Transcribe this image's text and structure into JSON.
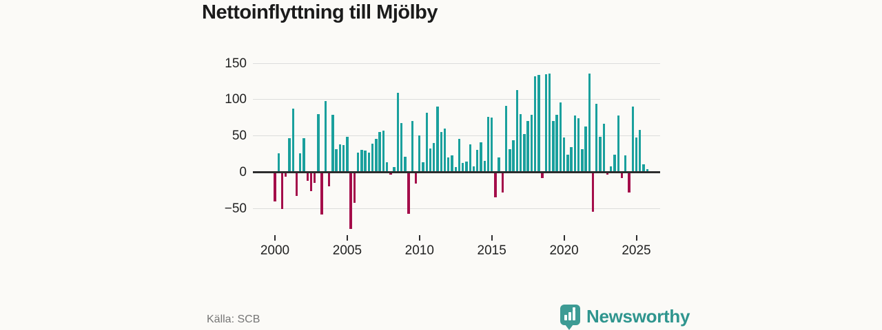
{
  "title": "Nettoinflyttning till Mjölby",
  "source": "Källa: SCB",
  "brand": {
    "name": "Newsworthy",
    "icon": "bar-chart-pin-icon",
    "badge_color": "#3d9b94",
    "text_color": "#2f958e"
  },
  "colors": {
    "positive_bar": "#1aa09d",
    "negative_bar": "#a40d4a",
    "gridline": "#dcdcdc",
    "zero_axis": "#2d2d2d",
    "tick_text": "#222222",
    "muted_text": "#757575",
    "background": "#fbfaf7"
  },
  "chart_data": {
    "type": "bar",
    "title": "Nettoinflyttning till Mjölby",
    "x_frequency": "quarterly",
    "x_start": "2000 Q1",
    "x_end": "2025 Q4",
    "x_tick_labels": [
      "2000",
      "2005",
      "2010",
      "2015",
      "2020",
      "2025"
    ],
    "y_ticks": [
      150,
      100,
      50,
      0,
      -50
    ],
    "y_tick_labels": [
      "150",
      "100",
      "50",
      "0",
      "−50"
    ],
    "ylim": [
      -85,
      155
    ],
    "grid": true,
    "legend": false,
    "values": [
      -40,
      26,
      -51,
      -6,
      47,
      88,
      -33,
      26,
      47,
      -12,
      -26,
      -15,
      80,
      -58,
      98,
      -19,
      79,
      32,
      38,
      37,
      49,
      -78,
      -42,
      27,
      31,
      30,
      27,
      39,
      46,
      55,
      57,
      14,
      -3,
      7,
      109,
      68,
      21,
      -57,
      71,
      -16,
      51,
      14,
      82,
      33,
      40,
      90,
      55,
      60,
      20,
      23,
      7,
      46,
      13,
      15,
      38,
      8,
      31,
      41,
      16,
      76,
      75,
      -35,
      20,
      -28,
      91,
      32,
      44,
      113,
      80,
      53,
      71,
      79,
      132,
      134,
      -8,
      135,
      136,
      71,
      79,
      96,
      48,
      24,
      35,
      78,
      74,
      32,
      63,
      136,
      -54,
      94,
      49,
      67,
      -3,
      8,
      24,
      78,
      -8,
      23,
      -28,
      90,
      48,
      58,
      11,
      4
    ]
  }
}
